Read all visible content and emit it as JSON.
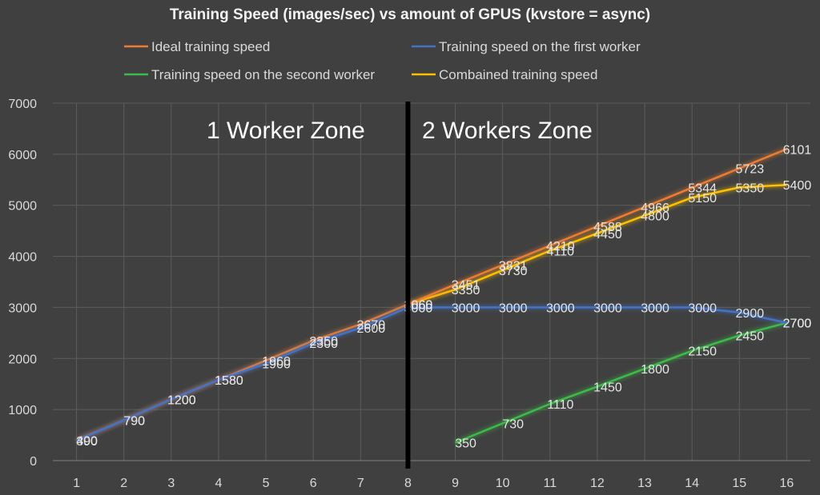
{
  "chart_data": {
    "type": "line",
    "title": "Training Speed (images/sec) vs amount of GPUS (kvstore = async)",
    "x": [
      1,
      2,
      3,
      4,
      5,
      6,
      7,
      8,
      9,
      10,
      11,
      12,
      13,
      14,
      15,
      16
    ],
    "ylim": [
      0,
      7000
    ],
    "yticks": [
      0,
      1000,
      2000,
      3000,
      4000,
      5000,
      6000,
      7000
    ],
    "grid": true,
    "legend_position": "top",
    "series": [
      {
        "name": "Ideal training speed",
        "color": "#ed7d31",
        "x": [
          1,
          2,
          3,
          4,
          5,
          6,
          7,
          8,
          9,
          10,
          11,
          12,
          13,
          14,
          15,
          16
        ],
        "values": [
          400,
          790,
          1200,
          1580,
          1960,
          2350,
          2670,
          3060,
          3451,
          3831,
          4210,
          4588,
          4966,
          5344,
          5723,
          6101
        ]
      },
      {
        "name": "Training speed on the first worker",
        "color": "#4472c4",
        "x": [
          1,
          2,
          3,
          4,
          5,
          6,
          7,
          8,
          9,
          10,
          11,
          12,
          13,
          14,
          15,
          16
        ],
        "values": [
          390,
          790,
          1200,
          1580,
          1900,
          2300,
          2600,
          3000,
          3000,
          3000,
          3000,
          3000,
          3000,
          3000,
          2900,
          2700
        ]
      },
      {
        "name": "Training speed on the second worker",
        "color": "#3dbb4a",
        "x": [
          9,
          10,
          11,
          12,
          13,
          14,
          15,
          16
        ],
        "values": [
          350,
          730,
          1110,
          1450,
          1800,
          2150,
          2450,
          2700
        ]
      },
      {
        "name": "Combained training speed",
        "color": "#ffc000",
        "x": [
          8,
          9,
          10,
          11,
          12,
          13,
          14,
          15,
          16
        ],
        "values": [
          3060,
          3350,
          3730,
          4110,
          4450,
          4800,
          5150,
          5350,
          5400
        ]
      }
    ],
    "annotations": [
      "1 Worker Zone",
      "2 Workers Zone"
    ],
    "divider_x": 8
  }
}
